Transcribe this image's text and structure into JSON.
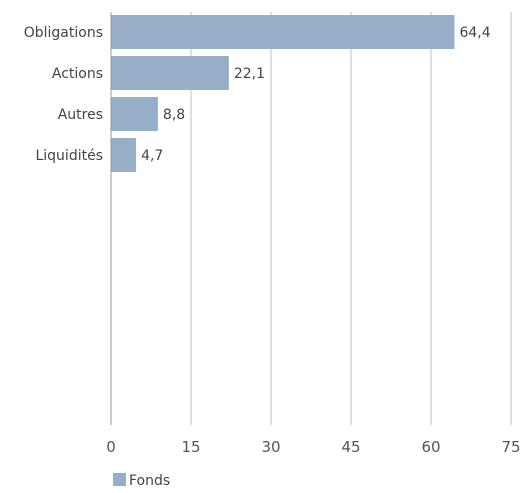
{
  "chart_data": {
    "type": "bar",
    "orientation": "horizontal",
    "categories": [
      "Obligations",
      "Actions",
      "Autres",
      "Liquidités"
    ],
    "series": [
      {
        "name": "Fonds",
        "values": [
          64.4,
          22.1,
          8.8,
          4.7
        ],
        "value_labels": [
          "64,4",
          "22,1",
          "8,8",
          "4,7"
        ]
      }
    ],
    "xlim": [
      0,
      75
    ],
    "xticks": [
      0,
      15,
      30,
      45,
      60,
      75
    ],
    "xtick_labels": [
      "0",
      "15",
      "30",
      "45",
      "60",
      "75"
    ],
    "grid": "vertical",
    "legend": "bottom-left",
    "colors": {
      "bar": "#97aec9",
      "grid": "#bfbfbf",
      "axis": "#999999"
    }
  }
}
